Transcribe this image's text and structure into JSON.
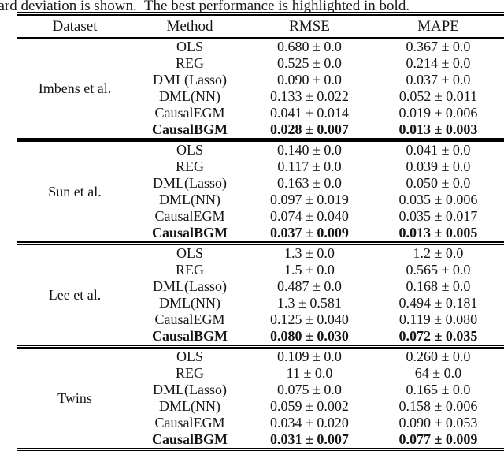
{
  "caption": "dard deviation is shown.  The best performance is highlighted in bold.",
  "table": {
    "headers": [
      "Dataset",
      "Method",
      "RMSE",
      "MAPE"
    ],
    "groups": [
      {
        "dataset": "Imbens et al.",
        "rows": [
          {
            "method": "OLS",
            "rmse": "0.680 ± 0.0",
            "mape": "0.367 ± 0.0",
            "bold": false
          },
          {
            "method": "REG",
            "rmse": "0.525 ± 0.0",
            "mape": "0.214 ± 0.0",
            "bold": false
          },
          {
            "method": "DML(Lasso)",
            "rmse": "0.090 ± 0.0",
            "mape": "0.037 ± 0.0",
            "bold": false
          },
          {
            "method": "DML(NN)",
            "rmse": "0.133 ± 0.022",
            "mape": "0.052 ± 0.011",
            "bold": false
          },
          {
            "method": "CausalEGM",
            "rmse": "0.041 ± 0.014",
            "mape": "0.019 ± 0.006",
            "bold": false
          },
          {
            "method": "CausalBGM",
            "rmse": "0.028 ± 0.007",
            "mape": "0.013 ± 0.003",
            "bold": true
          }
        ]
      },
      {
        "dataset": "Sun et al.",
        "rows": [
          {
            "method": "OLS",
            "rmse": "0.140 ± 0.0",
            "mape": "0.041 ± 0.0",
            "bold": false
          },
          {
            "method": "REG",
            "rmse": "0.117 ± 0.0",
            "mape": "0.039 ± 0.0",
            "bold": false
          },
          {
            "method": "DML(Lasso)",
            "rmse": "0.163 ± 0.0",
            "mape": "0.050 ± 0.0",
            "bold": false
          },
          {
            "method": "DML(NN)",
            "rmse": "0.097 ± 0.019",
            "mape": "0.035 ± 0.006",
            "bold": false
          },
          {
            "method": "CausalEGM",
            "rmse": "0.074 ± 0.040",
            "mape": "0.035 ± 0.017",
            "bold": false
          },
          {
            "method": "CausalBGM",
            "rmse": "0.037 ± 0.009",
            "mape": "0.013 ± 0.005",
            "bold": true
          }
        ]
      },
      {
        "dataset": "Lee et al.",
        "rows": [
          {
            "method": "OLS",
            "rmse": "1.3 ± 0.0",
            "mape": "1.2 ± 0.0",
            "bold": false
          },
          {
            "method": "REG",
            "rmse": "1.5 ± 0.0",
            "mape": "0.565 ± 0.0",
            "bold": false
          },
          {
            "method": "DML(Lasso)",
            "rmse": "0.487 ± 0.0",
            "mape": "0.168 ± 0.0",
            "bold": false
          },
          {
            "method": "DML(NN)",
            "rmse": "1.3 ± 0.581",
            "mape": "0.494 ± 0.181",
            "bold": false
          },
          {
            "method": "CausalEGM",
            "rmse": "0.125 ± 0.040",
            "mape": "0.119 ± 0.080",
            "bold": false
          },
          {
            "method": "CausalBGM",
            "rmse": "0.080 ± 0.030",
            "mape": "0.072 ± 0.035",
            "bold": true
          }
        ]
      },
      {
        "dataset": "Twins",
        "rows": [
          {
            "method": "OLS",
            "rmse": "0.109 ± 0.0",
            "mape": "0.260 ± 0.0",
            "bold": false
          },
          {
            "method": "REG",
            "rmse": "11 ± 0.0",
            "mape": "64 ± 0.0",
            "bold": false
          },
          {
            "method": "DML(Lasso)",
            "rmse": "0.075 ± 0.0",
            "mape": "0.165 ± 0.0",
            "bold": false
          },
          {
            "method": "DML(NN)",
            "rmse": "0.059 ± 0.002",
            "mape": "0.158 ± 0.006",
            "bold": false
          },
          {
            "method": "CausalEGM",
            "rmse": "0.034 ± 0.020",
            "mape": "0.090 ± 0.053",
            "bold": false
          },
          {
            "method": "CausalBGM",
            "rmse": "0.031 ± 0.007",
            "mape": "0.077 ± 0.009",
            "bold": true
          }
        ]
      }
    ]
  },
  "chart_data": {
    "type": "table",
    "title": "Method comparison: RMSE and MAPE (mean ± standard deviation) per dataset; best performance in bold",
    "columns": [
      "Dataset",
      "Method",
      "RMSE",
      "MAPE"
    ],
    "datasets": [
      "Imbens et al.",
      "Sun et al.",
      "Lee et al.",
      "Twins"
    ],
    "methods": [
      "OLS",
      "REG",
      "DML(Lasso)",
      "DML(NN)",
      "CausalEGM",
      "CausalBGM"
    ],
    "best_method": "CausalBGM"
  }
}
